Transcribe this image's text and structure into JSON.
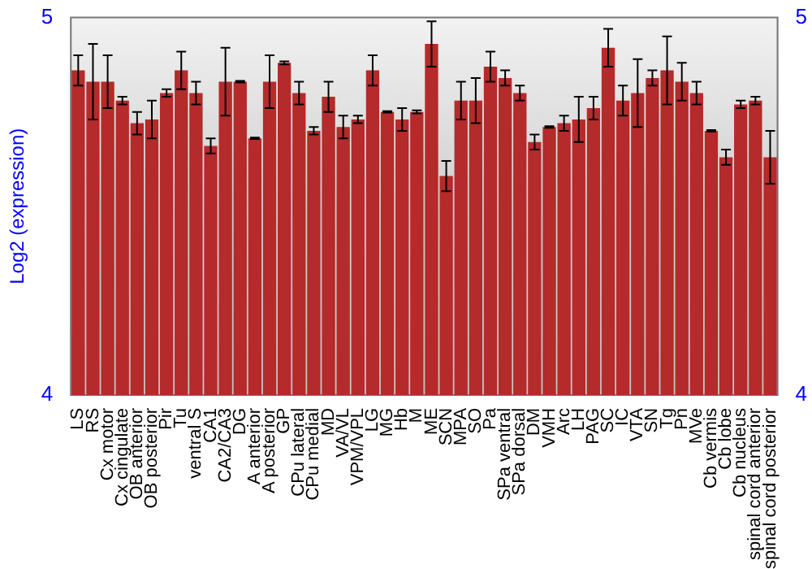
{
  "chart_data": {
    "type": "bar",
    "ylabel": "Log2 (expression)",
    "categories": [
      "LS",
      "RS",
      "Cx motor",
      "Cx cingulate",
      "OB anterior",
      "OB posterior",
      "Pir",
      "Tu",
      "ventral S",
      "CA1",
      "CA2/CA3",
      "DG",
      "A anterior",
      "A posterior",
      "GP",
      "CPu lateral",
      "CPu medial",
      "MD",
      "VA/VL",
      "VPM/VPL",
      "LG",
      "MG",
      "Hb",
      "M",
      "ME",
      "SCN",
      "MPA",
      "SO",
      "Pa",
      "SPa ventral",
      "SPa dorsal",
      "DM",
      "VMH",
      "Arc",
      "LH",
      "PAG",
      "SC",
      "IC",
      "VTA",
      "SN",
      "Tg",
      "Pn",
      "MVe",
      "Cb vermis",
      "Cb lobe",
      "Cb nucleus",
      "spinal cord anterior",
      "spinal cord posterior"
    ],
    "values": [
      4.86,
      4.83,
      4.83,
      4.78,
      4.72,
      4.73,
      4.8,
      4.86,
      4.8,
      4.66,
      4.83,
      4.83,
      4.68,
      4.83,
      4.88,
      4.8,
      4.7,
      4.79,
      4.71,
      4.73,
      4.86,
      4.75,
      4.73,
      4.75,
      4.93,
      4.58,
      4.78,
      4.78,
      4.87,
      4.84,
      4.8,
      4.67,
      4.71,
      4.72,
      4.73,
      4.76,
      4.92,
      4.78,
      4.8,
      4.84,
      4.86,
      4.83,
      4.8,
      4.7,
      4.63,
      4.77,
      4.78,
      4.63
    ],
    "errors": [
      0.04,
      0.1,
      0.07,
      0.01,
      0.03,
      0.05,
      0.01,
      0.05,
      0.03,
      0.02,
      0.09,
      0.002,
      0.002,
      0.07,
      0.004,
      0.03,
      0.01,
      0.04,
      0.03,
      0.01,
      0.04,
      0.002,
      0.03,
      0.004,
      0.06,
      0.04,
      0.05,
      0.06,
      0.04,
      0.02,
      0.02,
      0.02,
      0.002,
      0.02,
      0.06,
      0.03,
      0.05,
      0.04,
      0.09,
      0.02,
      0.09,
      0.05,
      0.03,
      0.002,
      0.02,
      0.01,
      0.01,
      0.07
    ],
    "color": "#b52a2a",
    "ylim": [
      4,
      5
    ],
    "yticks": [
      4,
      5
    ],
    "y2lim": [
      4,
      5
    ],
    "y2ticks": [
      4,
      5
    ]
  }
}
